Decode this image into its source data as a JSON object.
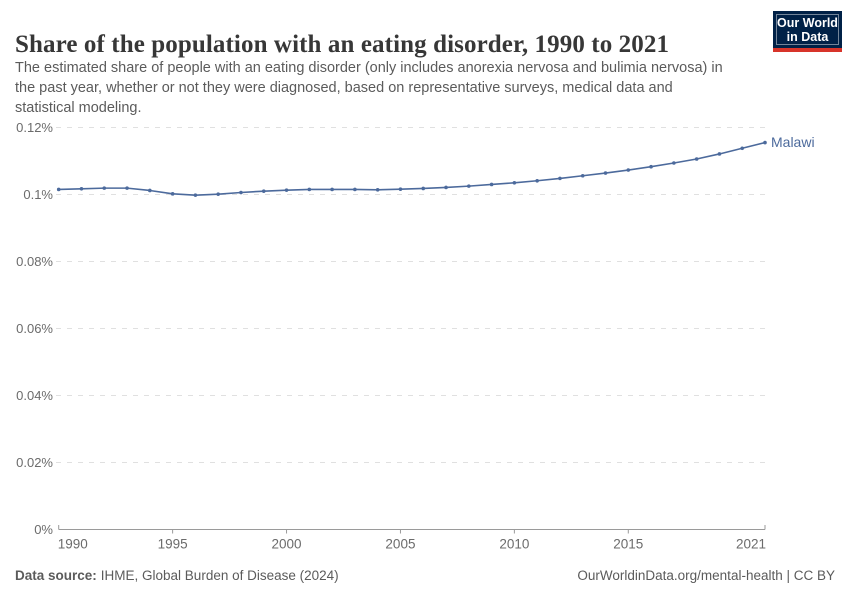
{
  "header": {
    "title": "Share of the population with an eating disorder, 1990 to 2021",
    "subtitle_lines": [
      "The estimated share of people with an eating disorder (only includes anorexia nervosa and bulimia nervosa) in",
      "the past year, whether or not they were diagnosed, based on representative surveys, medical data and",
      "statistical modeling."
    ],
    "logo": {
      "line1": "Our World",
      "line2": "in Data"
    }
  },
  "colors": {
    "line": "#4C6A9C",
    "entity_label": "#4C6A9C",
    "grid": "#e0e0e0",
    "axis": "#9a9a9a",
    "tick_text": "#6b6b6b",
    "logo_navy": "#002147",
    "logo_red": "#d7342a"
  },
  "chart_data": {
    "type": "line",
    "title": "Share of the population with an eating disorder, 1990 to 2021",
    "xlabel": "",
    "ylabel": "",
    "x_range": [
      1990,
      2021
    ],
    "ylim_pct": [
      0,
      0.12
    ],
    "grid": "horizontal-dashed",
    "legend_position": "end-of-line",
    "x": [
      1990,
      1991,
      1992,
      1993,
      1994,
      1995,
      1996,
      1997,
      1998,
      1999,
      2000,
      2001,
      2002,
      2003,
      2004,
      2005,
      2006,
      2007,
      2008,
      2009,
      2010,
      2011,
      2012,
      2013,
      2014,
      2015,
      2016,
      2017,
      2018,
      2019,
      2020,
      2021
    ],
    "series": [
      {
        "name": "Malawi",
        "unit": "%",
        "values_pct": [
          0.1015,
          0.1017,
          0.1019,
          0.1019,
          0.1012,
          0.1002,
          0.0998,
          0.1001,
          0.1006,
          0.101,
          0.1013,
          0.1015,
          0.1015,
          0.1015,
          0.1014,
          0.1016,
          0.1018,
          0.1021,
          0.1025,
          0.103,
          0.1035,
          0.1041,
          0.1048,
          0.1056,
          0.1064,
          0.1073,
          0.1083,
          0.1094,
          0.1106,
          0.1121,
          0.1138,
          0.1155
        ]
      }
    ],
    "y_axis": {
      "ticks": [
        {
          "v": 0,
          "label": "0%"
        },
        {
          "v": 0.02,
          "label": "0.02%"
        },
        {
          "v": 0.04,
          "label": "0.04%"
        },
        {
          "v": 0.06,
          "label": "0.06%"
        },
        {
          "v": 0.08,
          "label": "0.08%"
        },
        {
          "v": 0.1,
          "label": "0.1%"
        },
        {
          "v": 0.12,
          "label": "0.12%"
        }
      ]
    },
    "x_axis": {
      "ticks": [
        {
          "v": 1990,
          "label": "1990",
          "align": "start"
        },
        {
          "v": 1995,
          "label": "1995",
          "align": "middle"
        },
        {
          "v": 2000,
          "label": "2000",
          "align": "middle"
        },
        {
          "v": 2005,
          "label": "2005",
          "align": "middle"
        },
        {
          "v": 2010,
          "label": "2010",
          "align": "middle"
        },
        {
          "v": 2015,
          "label": "2015",
          "align": "middle"
        },
        {
          "v": 2021,
          "label": "2021",
          "align": "end"
        }
      ]
    }
  },
  "footer": {
    "source_label": "Data source:",
    "source_text": "IHME, Global Burden of Disease (2024)",
    "credit": "OurWorldinData.org/mental-health | CC BY"
  }
}
